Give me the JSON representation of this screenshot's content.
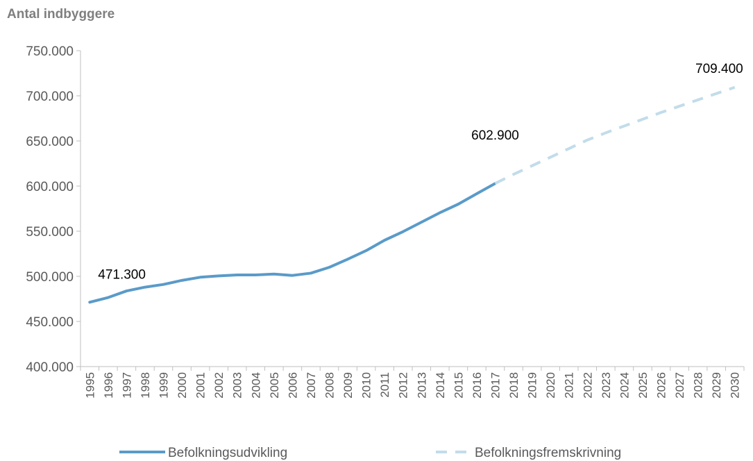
{
  "chart_data": {
    "type": "line",
    "ylabel": "Antal indbyggere",
    "xlabel": "",
    "ylim": [
      400000,
      750000
    ],
    "ytick_step": 50000,
    "ytick_labels": [
      "400.000",
      "450.000",
      "500.000",
      "550.000",
      "600.000",
      "650.000",
      "700.000",
      "750.000"
    ],
    "categories": [
      "1995",
      "1996",
      "1997",
      "1998",
      "1999",
      "2000",
      "2001",
      "2002",
      "2003",
      "2004",
      "2005",
      "2006",
      "2007",
      "2008",
      "2009",
      "2010",
      "2011",
      "2012",
      "2013",
      "2014",
      "2015",
      "2016",
      "2017",
      "2018",
      "2019",
      "2020",
      "2021",
      "2022",
      "2023",
      "2024",
      "2025",
      "2026",
      "2027",
      "2028",
      "2029",
      "2030"
    ],
    "grid": false,
    "legend_position": "bottom",
    "series": [
      {
        "name": "Befolkningsudvikling",
        "color": "#5a9bc9",
        "style": "solid",
        "x": [
          "1995",
          "1996",
          "1997",
          "1998",
          "1999",
          "2000",
          "2001",
          "2002",
          "2003",
          "2004",
          "2005",
          "2006",
          "2007",
          "2008",
          "2009",
          "2010",
          "2011",
          "2012",
          "2013",
          "2014",
          "2015",
          "2016",
          "2017"
        ],
        "values": [
          471300,
          476500,
          483800,
          488000,
          491000,
          495500,
          499000,
          500500,
          501500,
          501500,
          502500,
          501000,
          503500,
          510000,
          519000,
          528500,
          540000,
          549500,
          560000,
          570500,
          580000,
          591500,
          602900
        ]
      },
      {
        "name": "Befolkningsfremskrivning",
        "color": "#c2dcea",
        "style": "dashed",
        "x": [
          "2017",
          "2018",
          "2019",
          "2020",
          "2021",
          "2022",
          "2023",
          "2024",
          "2025",
          "2026",
          "2027",
          "2028",
          "2029",
          "2030"
        ],
        "values": [
          602900,
          613000,
          622500,
          632000,
          641500,
          651000,
          659000,
          666500,
          674000,
          681500,
          688500,
          695500,
          702500,
          709400
        ]
      }
    ],
    "annotations": [
      {
        "text": "471.300",
        "x": "1995",
        "value": 471300
      },
      {
        "text": "602.900",
        "x": "2017",
        "value": 602900
      },
      {
        "text": "709.400",
        "x": "2030",
        "value": 709400
      }
    ]
  }
}
